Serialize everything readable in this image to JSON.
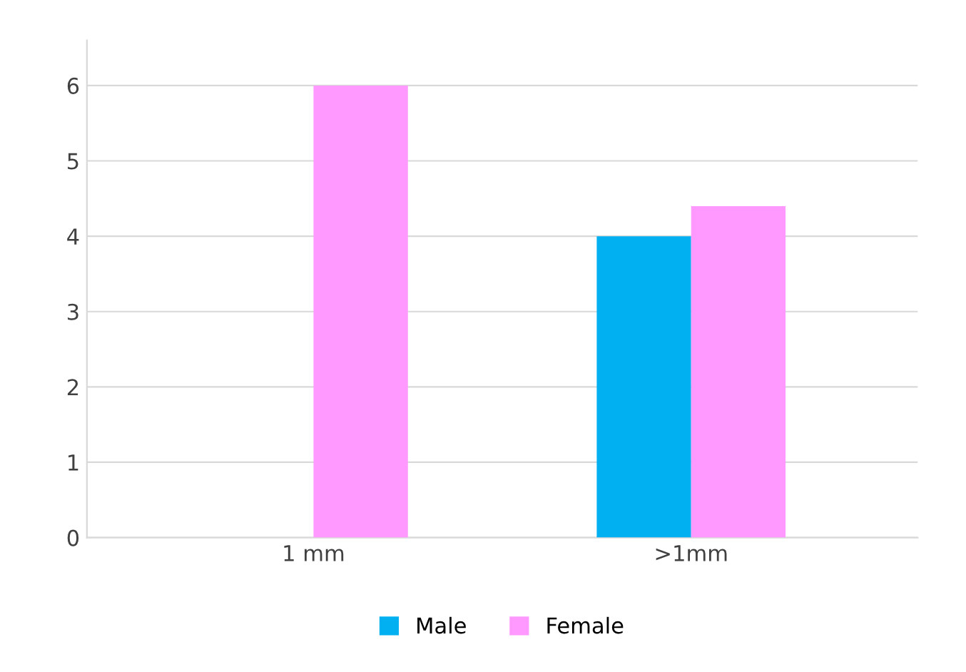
{
  "chart_data": {
    "type": "bar",
    "categories": [
      "1 mm",
      ">1mm"
    ],
    "series": [
      {
        "name": "Male",
        "color": "#00b0f0",
        "values": [
          0,
          4
        ]
      },
      {
        "name": "Female",
        "color": "#ff99ff",
        "values": [
          6,
          4.4
        ]
      }
    ],
    "ylim": [
      0,
      6.6
    ],
    "yticks": [
      0,
      1,
      2,
      3,
      4,
      5,
      6
    ],
    "grid": "y",
    "legend": "bottom"
  }
}
